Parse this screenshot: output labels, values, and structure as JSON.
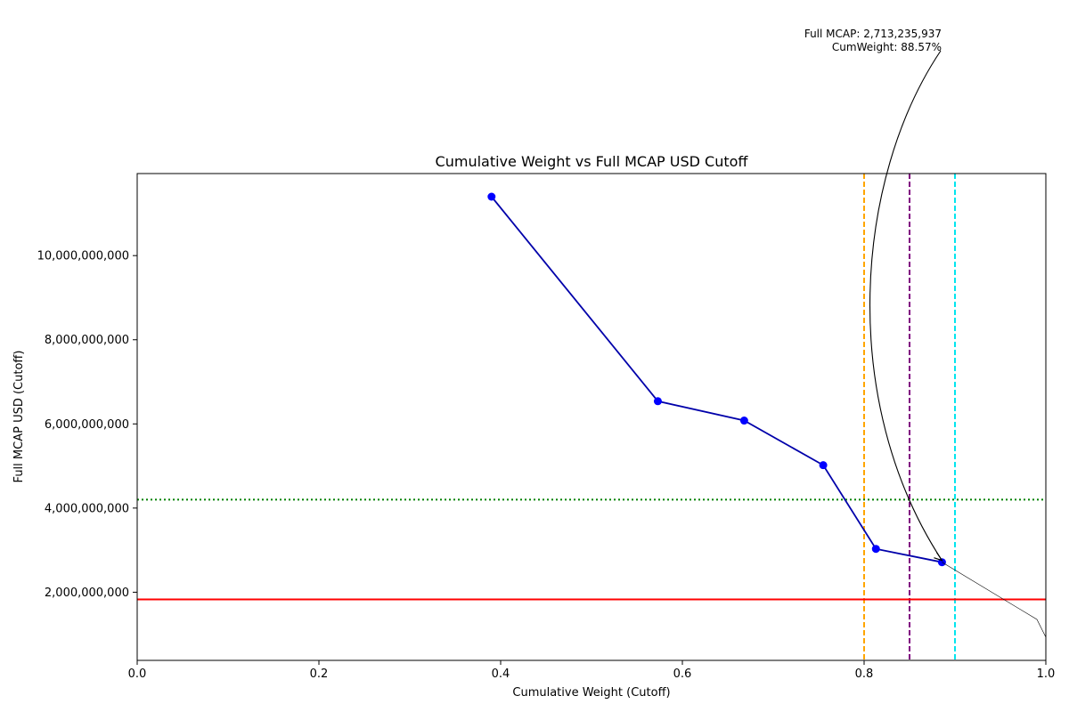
{
  "chart_data": {
    "type": "line",
    "title": "Cumulative Weight vs Full MCAP USD Cutoff",
    "xlabel": "Cumulative Weight (Cutoff)",
    "ylabel": "Full MCAP USD (Cutoff)",
    "xlim": [
      0.0,
      1.0
    ],
    "ylim": [
      380000000,
      11950000000
    ],
    "xticks": [
      0.0,
      0.2,
      0.4,
      0.6,
      0.8,
      1.0
    ],
    "xtick_labels": [
      "0.0",
      "0.2",
      "0.4",
      "0.6",
      "0.8",
      "1.0"
    ],
    "yticks": [
      2000000000,
      4000000000,
      6000000000,
      8000000000,
      10000000000
    ],
    "ytick_labels": [
      "2,000,000,000",
      "4,000,000,000",
      "6,000,000,000",
      "8,000,000,000",
      "10,000,000,000"
    ],
    "grid": false,
    "series": [
      {
        "color": "#0000ff",
        "line_color": "#0000aa",
        "x": [
          0.39,
          0.573,
          0.668,
          0.755,
          0.813,
          0.8857
        ],
        "y": [
          11400000000,
          6540000000,
          6080000000,
          5020000000,
          3030000000,
          2713235937
        ]
      }
    ],
    "reference_lines": [
      {
        "orientation": "vertical",
        "value": 0.8,
        "color": "#ffa500",
        "style": "dashed"
      },
      {
        "orientation": "vertical",
        "value": 0.85,
        "color": "#800080",
        "style": "dashed"
      },
      {
        "orientation": "vertical",
        "value": 0.9,
        "color": "#00e5ee",
        "style": "dashed"
      },
      {
        "orientation": "horizontal",
        "value": 4200000000,
        "color": "#008000",
        "style": "dotted"
      },
      {
        "orientation": "horizontal",
        "value": 1830000000,
        "color": "#ff0000",
        "style": "solid"
      }
    ],
    "annotation": {
      "lines": [
        "Full MCAP: 2,713,235,937",
        "CumWeight: 88.57%"
      ],
      "target_x": 0.8857,
      "target_y": 2713235937
    }
  }
}
